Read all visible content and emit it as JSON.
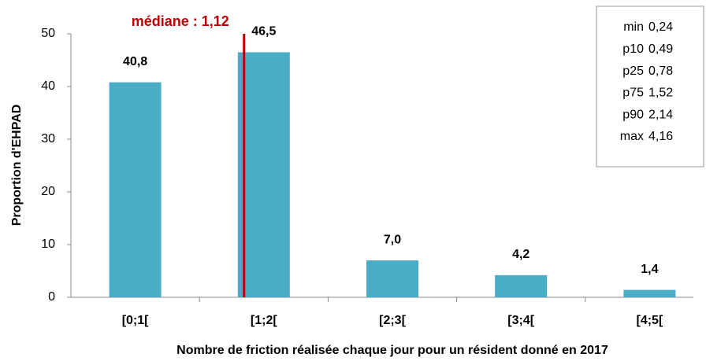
{
  "chart_data": {
    "type": "bar",
    "categories": [
      "[0;1[",
      "[1;2[",
      "[2;3[",
      "[3;4[",
      "[4;5["
    ],
    "values": [
      40.8,
      46.5,
      7.0,
      4.2,
      1.4
    ],
    "value_labels": [
      "40,8",
      "46,5",
      "7,0",
      "4,2",
      "1,4"
    ],
    "color": "#4bacc6",
    "ylim": [
      0,
      50
    ],
    "yticks": [
      0,
      10,
      20,
      30,
      40,
      50
    ],
    "y_label": "Proportion d'EHPAD",
    "x_label": "Nombre de friction réalisée chaque jour pour un résident donné en 2017",
    "median": {
      "value": 1.12,
      "label": "médiane : 1,12",
      "color": "#c00000"
    },
    "stats_box": [
      {
        "label": "min",
        "value": "0,24"
      },
      {
        "label": "p10",
        "value": "0,49"
      },
      {
        "label": "p25",
        "value": "0,78"
      },
      {
        "label": "p75",
        "value": "1,52"
      },
      {
        "label": "p90",
        "value": "2,14"
      },
      {
        "label": "max",
        "value": "4,16"
      }
    ]
  }
}
